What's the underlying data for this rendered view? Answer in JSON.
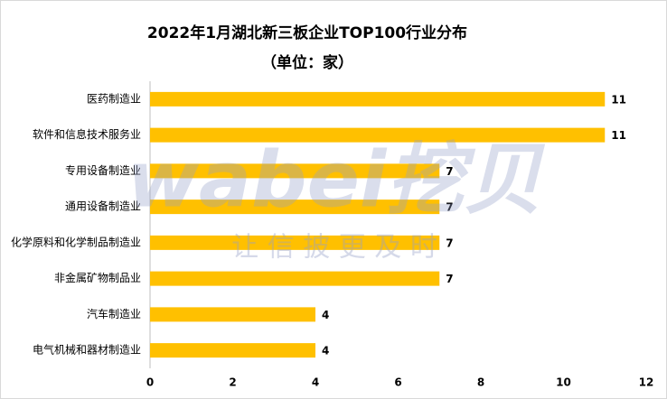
{
  "chart_data": {
    "type": "barh",
    "title": "2022年1月湖北新三板企业TOP100行业分布",
    "subtitle": "（单位：家）",
    "categories": [
      "医药制造业",
      "软件和信息技术服务业",
      "专用设备制造业",
      "通用设备制造业",
      "化学原料和化学制品制造业",
      "非金属矿物制品业",
      "汽车制造业",
      "电气机械和器材制造业"
    ],
    "values": [
      11,
      11,
      7,
      7,
      7,
      7,
      4,
      4
    ],
    "color": "#FFC000",
    "xlim": [
      0,
      12
    ],
    "xticks": [
      0,
      2,
      4,
      6,
      8,
      10,
      12
    ],
    "grid": false,
    "watermark": {
      "brand": "wabei挖贝",
      "slogan": "让 信 披 更 及 时"
    }
  }
}
